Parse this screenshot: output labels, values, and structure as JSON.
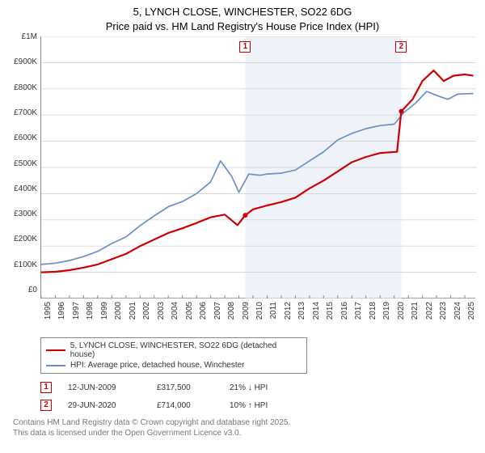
{
  "title_line1": "5, LYNCH CLOSE, WINCHESTER, SO22 6DG",
  "title_line2": "Price paid vs. HM Land Registry's House Price Index (HPI)",
  "chart": {
    "type": "line",
    "x_range": [
      1995,
      2025.8
    ],
    "y_range": [
      0,
      1000000
    ],
    "y_ticks": [
      "£1M",
      "£900K",
      "£800K",
      "£700K",
      "£600K",
      "£500K",
      "£400K",
      "£300K",
      "£200K",
      "£100K",
      "£0"
    ],
    "x_ticks": [
      1995,
      1996,
      1997,
      1998,
      1999,
      2000,
      2001,
      2002,
      2003,
      2004,
      2005,
      2006,
      2007,
      2008,
      2009,
      2010,
      2011,
      2012,
      2013,
      2014,
      2015,
      2016,
      2017,
      2018,
      2019,
      2020,
      2021,
      2022,
      2023,
      2024,
      2025
    ],
    "background_color": "#ffffff",
    "grid_color": "#cccccc",
    "shaded_regions": [
      {
        "x_from": 2009.45,
        "x_to": 2020.5,
        "fill": "#e8eef6"
      }
    ],
    "series": [
      {
        "id": "price_paid",
        "label": "5, LYNCH CLOSE, WINCHESTER, SO22 6DG (detached house)",
        "color": "#cc0000",
        "stroke_width": 2.2,
        "points": [
          [
            1995,
            100000
          ],
          [
            1996,
            102000
          ],
          [
            1997,
            108000
          ],
          [
            1998,
            118000
          ],
          [
            1999,
            130000
          ],
          [
            2000,
            150000
          ],
          [
            2001,
            170000
          ],
          [
            2002,
            200000
          ],
          [
            2003,
            225000
          ],
          [
            2004,
            250000
          ],
          [
            2005,
            268000
          ],
          [
            2006,
            288000
          ],
          [
            2007,
            310000
          ],
          [
            2008,
            320000
          ],
          [
            2008.9,
            280000
          ],
          [
            2009.45,
            317500
          ],
          [
            2010,
            340000
          ],
          [
            2011,
            355000
          ],
          [
            2012,
            368000
          ],
          [
            2013,
            385000
          ],
          [
            2014,
            420000
          ],
          [
            2015,
            450000
          ],
          [
            2016,
            485000
          ],
          [
            2017,
            520000
          ],
          [
            2018,
            540000
          ],
          [
            2019,
            555000
          ],
          [
            2020.2,
            560000
          ],
          [
            2020.5,
            714000
          ],
          [
            2021.3,
            760000
          ],
          [
            2022,
            830000
          ],
          [
            2022.8,
            870000
          ],
          [
            2023.5,
            830000
          ],
          [
            2024.2,
            850000
          ],
          [
            2025,
            855000
          ],
          [
            2025.6,
            850000
          ]
        ]
      },
      {
        "id": "hpi",
        "label": "HPI: Average price, detached house, Winchester",
        "color": "#6b8fc7",
        "stroke_width": 1.7,
        "points": [
          [
            1995,
            130000
          ],
          [
            1996,
            135000
          ],
          [
            1997,
            145000
          ],
          [
            1998,
            160000
          ],
          [
            1999,
            180000
          ],
          [
            2000,
            210000
          ],
          [
            2001,
            235000
          ],
          [
            2002,
            278000
          ],
          [
            2003,
            315000
          ],
          [
            2004,
            350000
          ],
          [
            2005,
            370000
          ],
          [
            2006,
            400000
          ],
          [
            2007,
            445000
          ],
          [
            2007.7,
            525000
          ],
          [
            2008.5,
            465000
          ],
          [
            2009,
            405000
          ],
          [
            2009.7,
            475000
          ],
          [
            2010.5,
            470000
          ],
          [
            2011,
            475000
          ],
          [
            2012,
            478000
          ],
          [
            2013,
            490000
          ],
          [
            2014,
            525000
          ],
          [
            2015,
            560000
          ],
          [
            2016,
            605000
          ],
          [
            2017,
            630000
          ],
          [
            2018,
            648000
          ],
          [
            2019,
            660000
          ],
          [
            2020,
            665000
          ],
          [
            2020.7,
            710000
          ],
          [
            2021.5,
            745000
          ],
          [
            2022.3,
            790000
          ],
          [
            2023,
            775000
          ],
          [
            2023.8,
            760000
          ],
          [
            2024.5,
            780000
          ],
          [
            2025.6,
            782000
          ]
        ]
      }
    ],
    "markers": [
      {
        "n": "1",
        "x": 2009.45,
        "y": 317500,
        "color": "#cc0000"
      },
      {
        "n": "2",
        "x": 2020.5,
        "y": 714000,
        "color": "#cc0000"
      }
    ]
  },
  "legend": {
    "rows": [
      {
        "color": "#cc0000",
        "label": "5, LYNCH CLOSE, WINCHESTER, SO22 6DG (detached house)"
      },
      {
        "color": "#6b8fc7",
        "label": "HPI: Average price, detached house, Winchester"
      }
    ]
  },
  "transactions": [
    {
      "n": "1",
      "color": "#cc0000",
      "date": "12-JUN-2009",
      "price": "£317,500",
      "delta": "21% ↓ HPI"
    },
    {
      "n": "2",
      "color": "#cc0000",
      "date": "29-JUN-2020",
      "price": "£714,000",
      "delta": "10% ↑ HPI"
    }
  ],
  "credits_line1": "Contains HM Land Registry data © Crown copyright and database right 2025.",
  "credits_line2": "This data is licensed under the Open Government Licence v3.0."
}
